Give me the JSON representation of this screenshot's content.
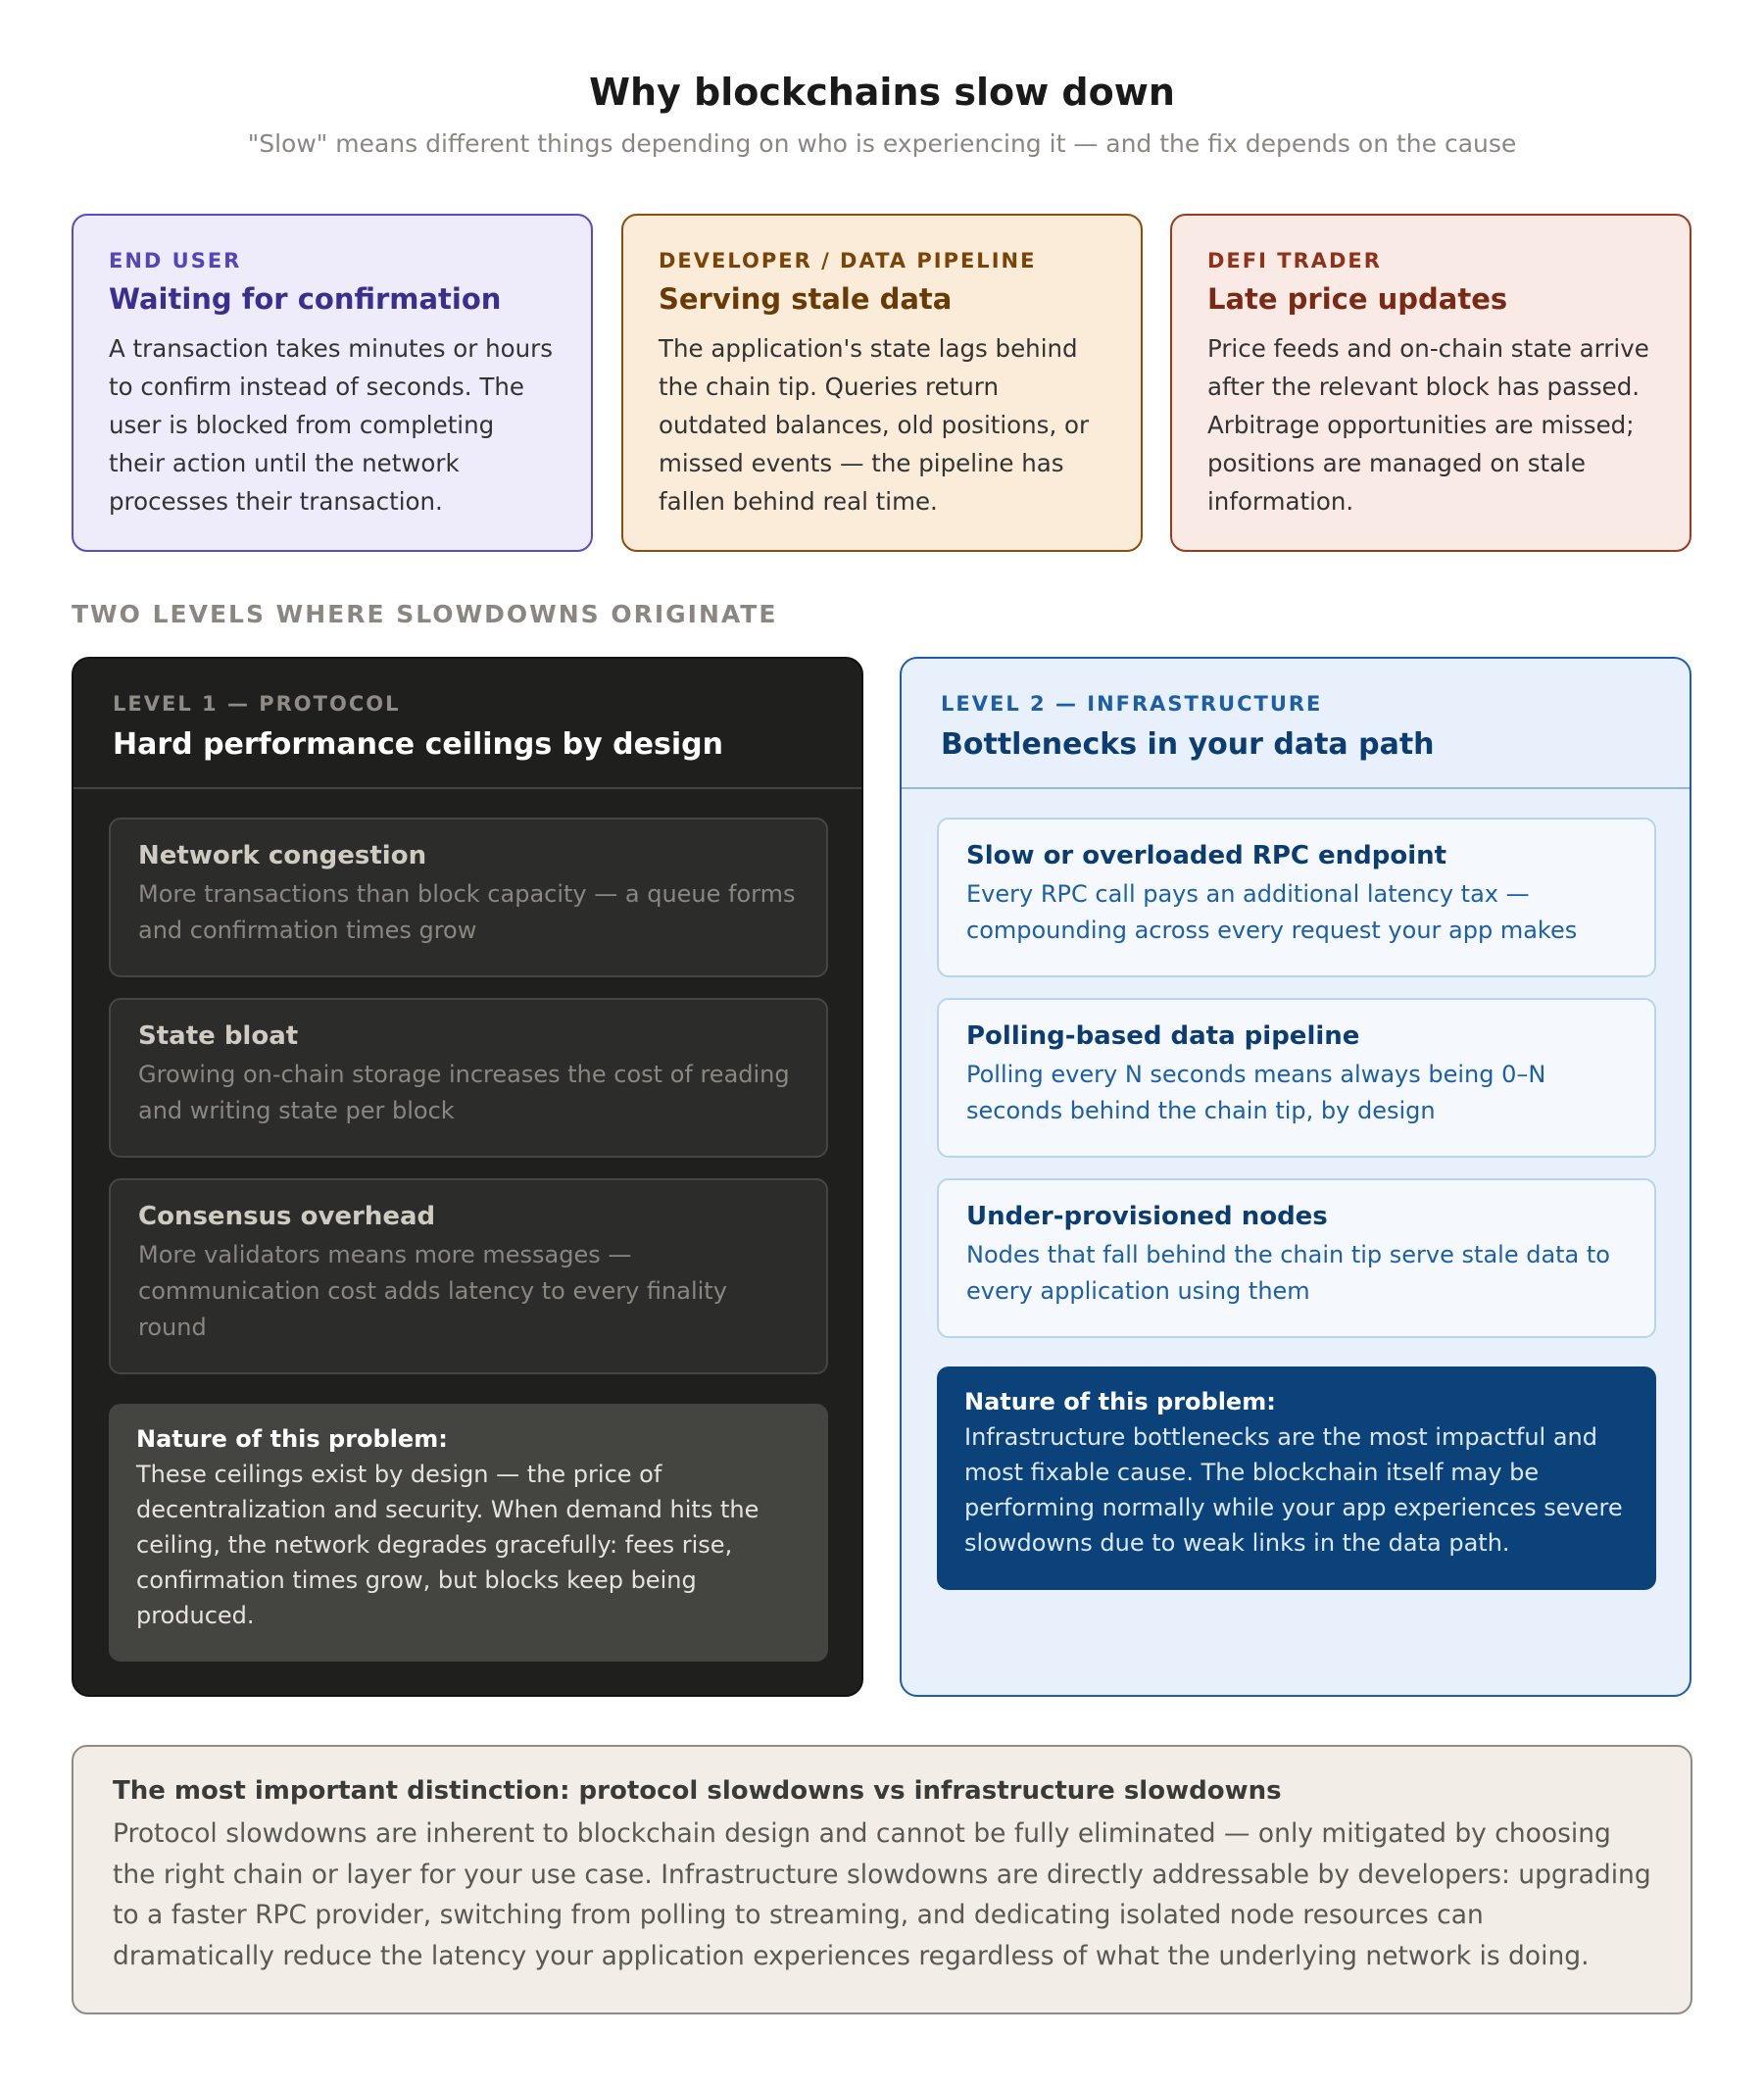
{
  "header": {
    "title": "Why blockchains slow down",
    "subtitle": "\"Slow\" means different things depending on who is experiencing it — and the fix depends on the cause"
  },
  "perspectives": [
    {
      "label": "END USER",
      "title": "Waiting for confirmation",
      "description": "A transaction takes minutes or hours to confirm instead of seconds. The user is blocked from completing their action until the network processes their transaction."
    },
    {
      "label": "DEVELOPER / DATA PIPELINE",
      "title": "Serving stale data",
      "description": "The application's state lags behind the chain tip. Queries return outdated balances, old positions, or missed events — the pipeline has fallen behind real time."
    },
    {
      "label": "DEFI TRADER",
      "title": "Late price updates",
      "description": "Price feeds and on-chain state arrive after the relevant block has passed. Arbitrage opportunities are missed; positions are managed on stale information."
    }
  ],
  "section_label": "TWO LEVELS WHERE SLOWDOWNS ORIGINATE",
  "level1": {
    "label": "LEVEL 1 — PROTOCOL",
    "title": "Hard performance ceilings by design",
    "items": [
      {
        "title": "Network congestion",
        "description": "More transactions than block capacity — a queue forms and confirmation times grow"
      },
      {
        "title": "State bloat",
        "description": "Growing on-chain storage increases the cost of reading and writing state per block"
      },
      {
        "title": "Consensus overhead",
        "description": "More validators means more messages — communication cost adds latency to every finality round"
      }
    ],
    "nature": {
      "title": "Nature of this problem:",
      "description": "These ceilings exist by design — the price of decentralization and security. When demand hits the ceiling, the network degrades gracefully: fees rise, confirmation times grow, but blocks keep being produced."
    }
  },
  "level2": {
    "label": "LEVEL 2 — INFRASTRUCTURE",
    "title": "Bottlenecks in your data path",
    "items": [
      {
        "title": "Slow or overloaded RPC endpoint",
        "description": "Every RPC call pays an additional latency tax — compounding across every request your app makes"
      },
      {
        "title": "Polling-based data pipeline",
        "description": "Polling every N seconds means always being 0–N seconds behind the chain tip, by design"
      },
      {
        "title": "Under-provisioned nodes",
        "description": "Nodes that fall behind the chain tip serve stale data to every application using them"
      }
    ],
    "nature": {
      "title": "Nature of this problem:",
      "description": "Infrastructure bottlenecks are the most impactful and most fixable cause. The blockchain itself may be performing normally while your app experiences severe slowdowns due to weak links in the data path."
    }
  },
  "distinction": {
    "title": "The most important distinction: protocol slowdowns vs infrastructure slowdowns",
    "description": "Protocol slowdowns are inherent to blockchain design and cannot be fully eliminated — only mitigated by choosing the right chain or layer for your use case. Infrastructure slowdowns are directly addressable by developers: upgrading to a faster RPC provider, switching from polling to streaming, and dedicating isolated node resources can dramatically reduce the latency your application experiences regardless of what the underlying network is doing."
  },
  "colors": {
    "end_user": "#4b3fb0",
    "developer": "#8a4f0c",
    "defi": "#9b3a20",
    "protocol_bg": "#1f1f1e",
    "infra": "#1d5fa6",
    "infra_nature": "#0b4279"
  }
}
